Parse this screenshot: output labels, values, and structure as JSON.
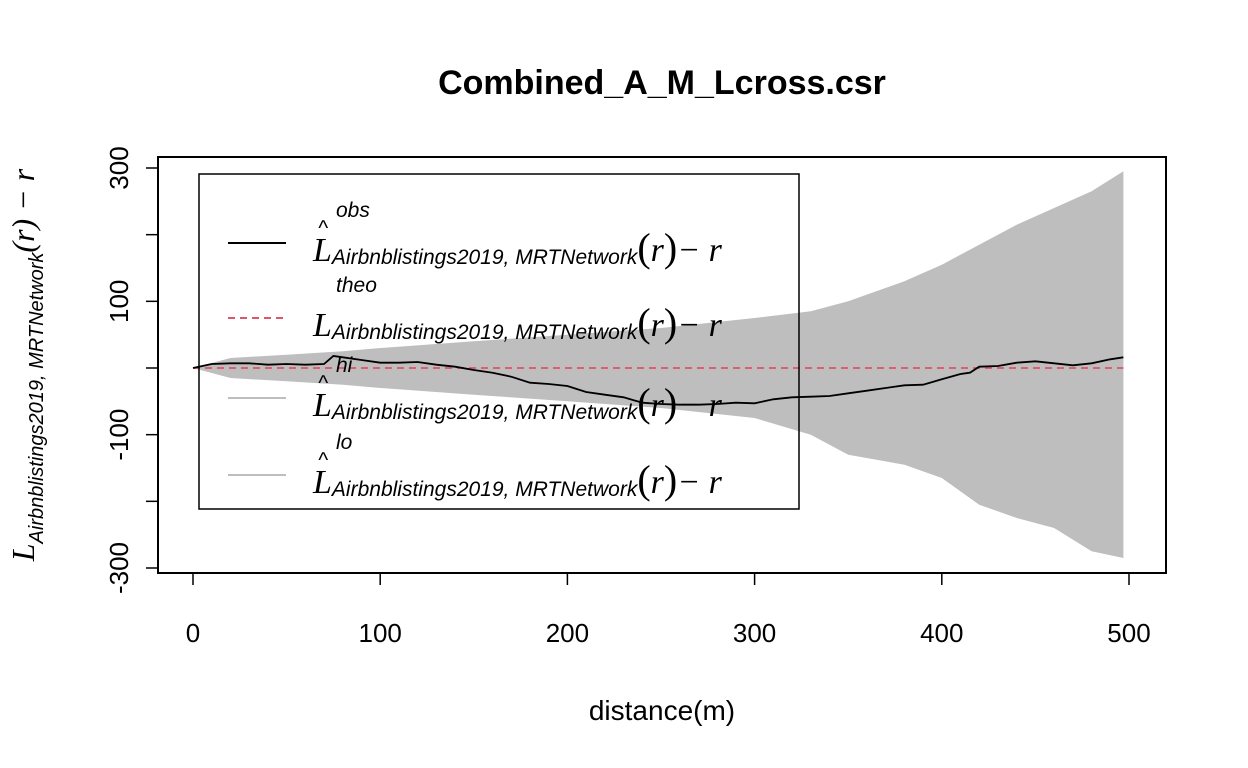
{
  "chart_data": {
    "type": "line",
    "title": "Combined_A_M_Lcross.csr",
    "xlabel": "distance(m)",
    "ylabel": {
      "main": "L",
      "subscript": "Airbnblistings2019, MRTNetwork",
      "suffix": "(r) − r"
    },
    "xlim": [
      0,
      500
    ],
    "ylim": [
      -300,
      300
    ],
    "x_ticks": [
      0,
      100,
      200,
      300,
      400,
      500
    ],
    "y_ticks": [
      -300,
      -200,
      -100,
      0,
      100,
      200,
      300
    ],
    "y_tick_labels": [
      "-300",
      "-100",
      "100",
      "300"
    ],
    "grid": false,
    "legend_position": "top-left",
    "legend": [
      {
        "sup": "obs",
        "hat": true,
        "sub": "Airbnblistings2019, MRTNetwork",
        "tail": "− r"
      },
      {
        "sup": "theo",
        "hat": false,
        "sub": "Airbnblistings2019, MRTNetwork",
        "tail": "− r"
      },
      {
        "sup": "hi",
        "hat": true,
        "sub": "Airbnblistings2019, MRTNetwork",
        "tail": "− r"
      },
      {
        "sup": "lo",
        "hat": true,
        "sub": "Airbnblistings2019, MRTNetwork",
        "tail": "− r"
      }
    ],
    "colors": {
      "obs": "#000000",
      "theo": "#df536b",
      "envelope": "#bebebe",
      "axis": "#000000"
    },
    "series": [
      {
        "name": "obs",
        "x": [
          0,
          10,
          20,
          30,
          40,
          50,
          60,
          70,
          75,
          80,
          90,
          100,
          110,
          120,
          130,
          140,
          150,
          160,
          170,
          180,
          190,
          200,
          210,
          220,
          230,
          240,
          250,
          260,
          270,
          280,
          290,
          300,
          310,
          320,
          330,
          340,
          350,
          360,
          370,
          380,
          390,
          400,
          410,
          415,
          420,
          430,
          440,
          450,
          460,
          470,
          480,
          490,
          497
        ],
        "y": [
          0,
          6,
          7,
          7,
          5,
          6,
          5,
          6,
          18,
          16,
          12,
          8,
          8,
          9,
          5,
          2,
          -3,
          -7,
          -13,
          -22,
          -24,
          -27,
          -36,
          -40,
          -44,
          -52,
          -54,
          -55,
          -55,
          -54,
          -52,
          -53,
          -47,
          -44,
          -43,
          -42,
          -38,
          -34,
          -30,
          -26,
          -25,
          -17,
          -9,
          -7,
          2,
          3,
          8,
          10,
          7,
          4,
          7,
          13,
          16
        ]
      },
      {
        "name": "theo",
        "x": [
          0,
          497
        ],
        "y": [
          0,
          0
        ]
      },
      {
        "name": "hi",
        "x": [
          0,
          20,
          50,
          80,
          100,
          150,
          200,
          250,
          300,
          330,
          350,
          380,
          400,
          420,
          440,
          460,
          480,
          497
        ],
        "y": [
          0,
          15,
          20,
          25,
          30,
          40,
          50,
          60,
          75,
          85,
          100,
          130,
          155,
          185,
          215,
          240,
          265,
          295
        ]
      },
      {
        "name": "lo",
        "x": [
          0,
          20,
          50,
          80,
          100,
          150,
          200,
          250,
          300,
          330,
          350,
          380,
          400,
          420,
          440,
          460,
          480,
          497
        ],
        "y": [
          0,
          -15,
          -20,
          -25,
          -30,
          -40,
          -50,
          -60,
          -75,
          -100,
          -130,
          -145,
          -165,
          -205,
          -225,
          -240,
          -275,
          -285
        ]
      }
    ]
  }
}
